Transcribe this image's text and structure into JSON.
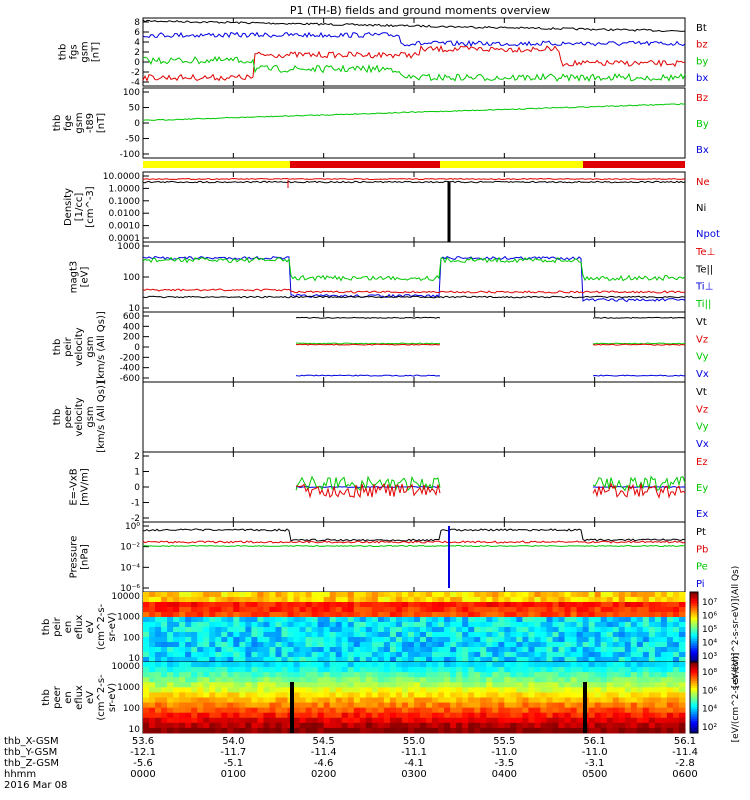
{
  "title": "P1 (TH-B) fields and ground moments overview",
  "colors": {
    "black": "#000000",
    "red": "#e00000",
    "green": "#00c800",
    "blue": "#0000e0",
    "yellow": "#ffff00",
    "barred": "#e00000"
  },
  "chart_data": {
    "type": "line",
    "panels": [
      {
        "ylabel": [
          "thb",
          "fgs",
          "gsm",
          "[nT]"
        ],
        "yticks": [
          "8",
          "6",
          "4",
          "2",
          "0",
          "-2",
          "-4"
        ],
        "ylim": [
          -4,
          8
        ],
        "legend": [
          {
            "t": "Bt",
            "c": "black"
          },
          {
            "t": "bz",
            "c": "red"
          },
          {
            "t": "by",
            "c": "green"
          },
          {
            "t": "bx",
            "c": "blue"
          }
        ]
      },
      {
        "ylabel": [
          "thb",
          "fge",
          "gsm",
          "-t89",
          "[nT]"
        ],
        "yticks": [
          "100",
          "50",
          "0",
          "-50",
          "-100"
        ],
        "ylim": [
          -120,
          100
        ],
        "legend": [
          {
            "t": "Bz",
            "c": "red"
          },
          {
            "t": "By",
            "c": "green"
          },
          {
            "t": "Bx",
            "c": "blue"
          }
        ]
      },
      {
        "ylabel": [
          "Density",
          "[1/cc]",
          "[cm^-3]"
        ],
        "yticks": [
          "10.0000",
          "1.0000",
          "0.1000",
          "0.0100",
          "0.0010",
          "0.0001"
        ],
        "ylim": [
          0.0001,
          10
        ],
        "legend": [
          {
            "t": "Ne",
            "c": "red"
          },
          {
            "t": "Ni",
            "c": "black"
          },
          {
            "t": "Npot",
            "c": "blue"
          }
        ]
      },
      {
        "ylabel": [
          "magt3",
          "[eV]"
        ],
        "yticks": [
          "1000",
          "100",
          "10"
        ],
        "ylim": [
          10,
          1000
        ],
        "legend": [
          {
            "t": "Te⊥",
            "c": "red"
          },
          {
            "t": "Te||",
            "c": "black"
          },
          {
            "t": "Ti⊥",
            "c": "blue"
          },
          {
            "t": "Ti||",
            "c": "green"
          }
        ]
      },
      {
        "ylabel": [
          "thb",
          "peir",
          "velocity",
          "gsm",
          "[km/s (All Qs)]"
        ],
        "yticks": [
          "600",
          "400",
          "200",
          "0",
          "-200",
          "-400",
          "-600"
        ],
        "ylim": [
          -600,
          600
        ],
        "legend": [
          {
            "t": "Vt",
            "c": "black"
          },
          {
            "t": "Vz",
            "c": "red"
          },
          {
            "t": "Vy",
            "c": "green"
          },
          {
            "t": "Vx",
            "c": "blue"
          }
        ]
      },
      {
        "ylabel": [
          "thb",
          "peer",
          "velocity",
          "gsm",
          "[km/s (All Qs)]"
        ],
        "yticks": [],
        "ylim": null,
        "legend": [
          {
            "t": "Vt",
            "c": "black"
          },
          {
            "t": "Vz",
            "c": "red"
          },
          {
            "t": "Vy",
            "c": "green"
          },
          {
            "t": "Vx",
            "c": "blue"
          }
        ]
      },
      {
        "ylabel": [
          "E=-VxB",
          "[mV/m]"
        ],
        "yticks": [
          "2",
          "1",
          "0",
          "-1",
          "-2"
        ],
        "ylim": [
          -2,
          2
        ],
        "legend": [
          {
            "t": "Ez",
            "c": "red"
          },
          {
            "t": "Ey",
            "c": "green"
          },
          {
            "t": "Ex",
            "c": "blue"
          }
        ]
      },
      {
        "ylabel": [
          "Pressure",
          "[nPa]"
        ],
        "yticks": [
          "10⁰",
          "10⁻²",
          "10⁻⁴",
          "10⁻⁶"
        ],
        "ylim": [
          1e-06,
          1
        ],
        "legend": [
          {
            "t": "Pt",
            "c": "black"
          },
          {
            "t": "Pb",
            "c": "red"
          },
          {
            "t": "Pe",
            "c": "green"
          },
          {
            "t": "Pi",
            "c": "blue"
          }
        ]
      },
      {
        "ylabel": [
          "thb",
          "peir",
          "en",
          "eflux",
          "eV",
          "(cm^2-s-",
          "sr-eV)"
        ],
        "yticks": [
          "10000",
          "1000",
          "100",
          "10"
        ],
        "ylim": [
          10,
          10000
        ],
        "cbar_ticks": [
          "10⁷",
          "10⁶",
          "10⁵",
          "10⁴",
          "10³"
        ],
        "cbar_label": "[eV/(cm^2-s-sr-eV)](All Qs)"
      },
      {
        "ylabel": [
          "thb",
          "peer",
          "en",
          "eflux",
          "eV",
          "(cm^2-s-",
          "sr-eV)"
        ],
        "yticks": [
          "10000",
          "1000",
          "100",
          "10"
        ],
        "ylim": [
          10,
          10000
        ],
        "cbar_ticks": [
          "10⁸",
          "10⁶",
          "10⁴",
          "10²"
        ],
        "cbar_label": "[eV/(cm^2-s-sr-eV)]"
      }
    ],
    "mode_bar": [
      "yellow",
      "red",
      "yellow",
      "red"
    ],
    "x_axis": {
      "rows": [
        {
          "label": "thb_X-GSM",
          "values": [
            "53.6",
            "54.0",
            "54.5",
            "55.0",
            "55.5",
            "56.1",
            "56.1"
          ]
        },
        {
          "label": "thb_Y-GSM",
          "values": [
            "-12.1",
            "-11.7",
            "-11.4",
            "-11.1",
            "-11.0",
            "-11.0",
            "-11.4"
          ]
        },
        {
          "label": "thb_Z-GSM",
          "values": [
            "-5.6",
            "-5.1",
            "-4.6",
            "-4.1",
            "-3.5",
            "-3.1",
            "-2.8"
          ]
        },
        {
          "label": "hhmm",
          "values": [
            "0000",
            "0100",
            "0200",
            "0300",
            "0400",
            "0500",
            "0600"
          ]
        }
      ],
      "date": "2016 Mar 08"
    }
  }
}
